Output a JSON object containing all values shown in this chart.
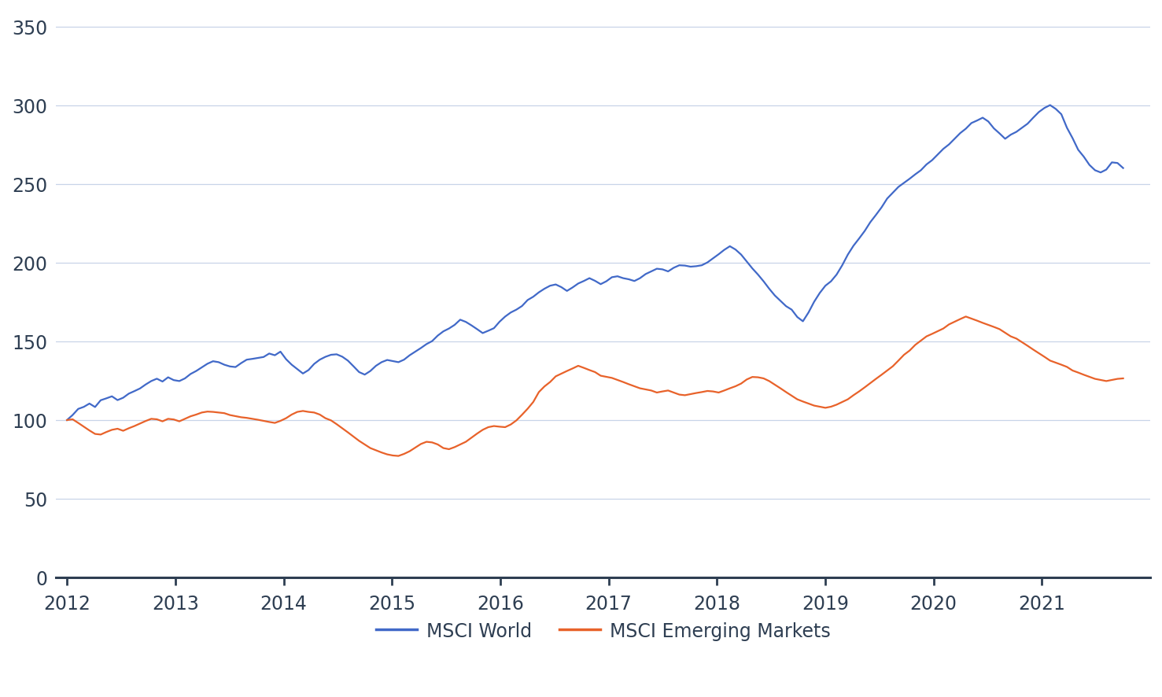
{
  "world_color": "#4169C8",
  "em_color": "#E8622A",
  "background_color": "#ffffff",
  "grid_color": "#c8d4e8",
  "axis_color": "#2e3e52",
  "text_color": "#2e3e52",
  "yticks": [
    0,
    50,
    100,
    150,
    200,
    250,
    300,
    350
  ],
  "xtick_labels": [
    "2012",
    "2013",
    "2014",
    "2015",
    "2016",
    "2017",
    "2018",
    "2019",
    "2020",
    "2021"
  ],
  "ylim": [
    0,
    360
  ],
  "xlim_start": 2011.9,
  "xlim_end": 2022.0,
  "legend_labels": [
    "MSCI World",
    "MSCI Emerging Markets"
  ],
  "msci_world": [
    100.0,
    103.2,
    107.1,
    108.4,
    110.5,
    108.3,
    112.6,
    113.8,
    115.1,
    112.7,
    114.2,
    116.8,
    118.4,
    120.1,
    122.6,
    124.8,
    126.3,
    124.5,
    127.2,
    125.4,
    124.8,
    126.5,
    129.3,
    131.2,
    133.5,
    135.8,
    137.4,
    136.8,
    135.2,
    134.1,
    133.7,
    136.2,
    138.4,
    138.9,
    139.5,
    140.1,
    142.3,
    141.2,
    143.5,
    138.7,
    135.2,
    132.4,
    129.6,
    131.8,
    135.7,
    138.4,
    140.2,
    141.5,
    141.8,
    140.3,
    137.8,
    134.2,
    130.5,
    128.9,
    131.2,
    134.5,
    136.8,
    138.2,
    137.5,
    136.8,
    138.4,
    141.2,
    143.5,
    145.8,
    148.3,
    150.2,
    153.7,
    156.4,
    158.2,
    160.5,
    163.8,
    162.4,
    160.2,
    157.8,
    155.3,
    156.8,
    158.4,
    162.5,
    165.8,
    168.4,
    170.2,
    172.5,
    176.3,
    178.4,
    181.2,
    183.5,
    185.4,
    186.2,
    184.5,
    182.1,
    184.3,
    186.8,
    188.4,
    190.2,
    188.5,
    186.4,
    188.2,
    190.8,
    191.4,
    190.2,
    189.5,
    188.4,
    190.2,
    192.8,
    194.5,
    196.2,
    195.8,
    194.5,
    196.8,
    198.4,
    198.2,
    197.5,
    197.8,
    198.4,
    200.2,
    202.8,
    205.4,
    208.2,
    210.5,
    208.4,
    205.2,
    200.8,
    196.4,
    192.5,
    188.2,
    183.5,
    179.2,
    175.8,
    172.4,
    170.2,
    165.5,
    162.8,
    168.4,
    175.2,
    180.8,
    185.4,
    188.2,
    192.5,
    198.4,
    205.2,
    210.8,
    215.4,
    220.2,
    225.8,
    230.4,
    235.2,
    240.8,
    244.5,
    248.2,
    250.8,
    253.4,
    256.2,
    258.8,
    262.5,
    265.2,
    268.8,
    272.4,
    275.2,
    278.8,
    282.4,
    285.2,
    288.8,
    290.4,
    292.2,
    289.8,
    285.4,
    282.2,
    278.8,
    281.4,
    283.2,
    285.8,
    288.4,
    292.2,
    295.8,
    298.4,
    300.2,
    297.8,
    294.4,
    285.8,
    279.2,
    271.8,
    267.4,
    262.2,
    258.8,
    257.4,
    259.2,
    263.8,
    263.4,
    260.2
  ],
  "msci_em": [
    100.0,
    100.5,
    98.2,
    95.8,
    93.4,
    91.2,
    90.8,
    92.4,
    93.8,
    94.5,
    93.2,
    94.8,
    96.2,
    97.8,
    99.4,
    100.8,
    100.5,
    99.2,
    100.8,
    100.4,
    99.2,
    100.8,
    102.4,
    103.5,
    104.8,
    105.4,
    105.2,
    104.8,
    104.4,
    103.2,
    102.5,
    101.8,
    101.4,
    100.8,
    100.2,
    99.5,
    98.8,
    98.2,
    99.5,
    101.2,
    103.5,
    105.2,
    105.8,
    105.2,
    104.8,
    103.5,
    101.2,
    99.8,
    97.4,
    94.8,
    92.2,
    89.5,
    86.8,
    84.5,
    82.2,
    80.8,
    79.4,
    78.2,
    77.5,
    77.2,
    78.5,
    80.2,
    82.5,
    84.8,
    86.2,
    85.8,
    84.5,
    82.2,
    81.5,
    82.8,
    84.5,
    86.2,
    88.8,
    91.4,
    93.8,
    95.5,
    96.2,
    95.8,
    95.5,
    97.2,
    99.8,
    103.4,
    107.2,
    111.5,
    117.8,
    121.4,
    124.2,
    127.8,
    129.5,
    131.2,
    132.8,
    134.5,
    133.2,
    131.8,
    130.5,
    128.2,
    127.5,
    126.8,
    125.5,
    124.2,
    122.8,
    121.5,
    120.2,
    119.5,
    118.8,
    117.5,
    118.2,
    118.8,
    117.5,
    116.2,
    115.8,
    116.5,
    117.2,
    117.8,
    118.5,
    118.2,
    117.5,
    118.8,
    120.2,
    121.5,
    123.2,
    125.8,
    127.4,
    127.2,
    126.5,
    124.8,
    122.5,
    120.2,
    117.8,
    115.5,
    113.2,
    111.8,
    110.5,
    109.2,
    108.5,
    107.8,
    108.5,
    109.8,
    111.5,
    113.2,
    115.8,
    118.2,
    120.8,
    123.5,
    126.2,
    128.8,
    131.5,
    134.2,
    137.8,
    141.5,
    144.2,
    147.8,
    150.5,
    153.2,
    154.8,
    156.5,
    158.2,
    160.8,
    162.5,
    164.2,
    165.8,
    164.5,
    163.2,
    161.8,
    160.5,
    159.2,
    157.8,
    155.5,
    153.2,
    151.8,
    149.5,
    147.2,
    144.8,
    142.5,
    140.2,
    137.8,
    136.5,
    135.2,
    133.8,
    131.5,
    130.2,
    128.8,
    127.5,
    126.2,
    125.5,
    124.8,
    125.5,
    126.2,
    126.5
  ]
}
